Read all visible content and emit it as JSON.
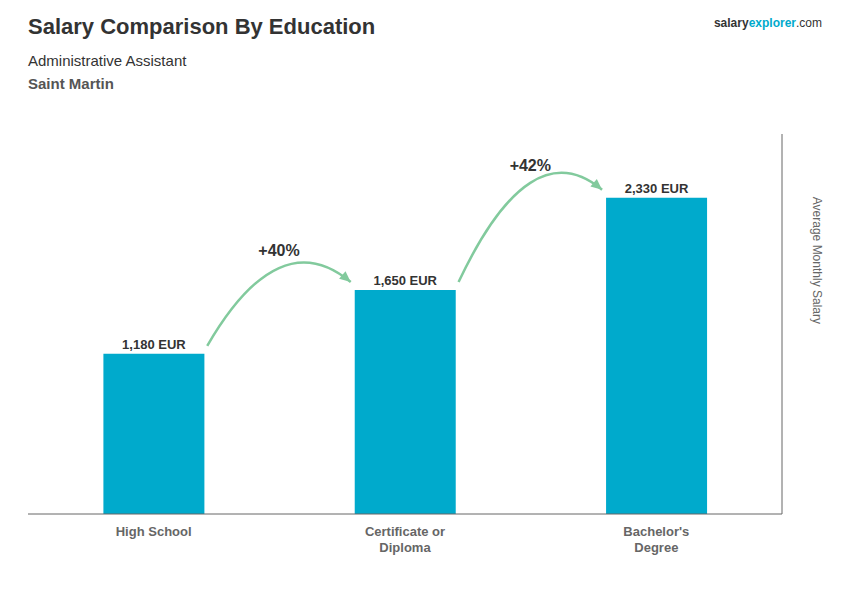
{
  "chart_data": {
    "type": "bar",
    "title": "Salary Comparison By Education",
    "subtitle": "Administrative Assistant",
    "annotations": [
      "Saint Martin",
      "salary",
      "explorer",
      ".com",
      "+40%",
      "+42%"
    ],
    "y_label": "Average Monthly Salary",
    "categories": [
      "High School",
      "Certificate or\nDiploma",
      "Bachelor's\nDegree"
    ],
    "values": [
      1180,
      1650,
      2330
    ],
    "value_labels": [
      "1,180 EUR",
      "1,650 EUR",
      "2,330 EUR"
    ],
    "data_labels": true,
    "color": "#00aacc",
    "ylim": [
      0,
      2800
    ],
    "yticks": [],
    "grid": false,
    "tick_labels": "x"
  }
}
